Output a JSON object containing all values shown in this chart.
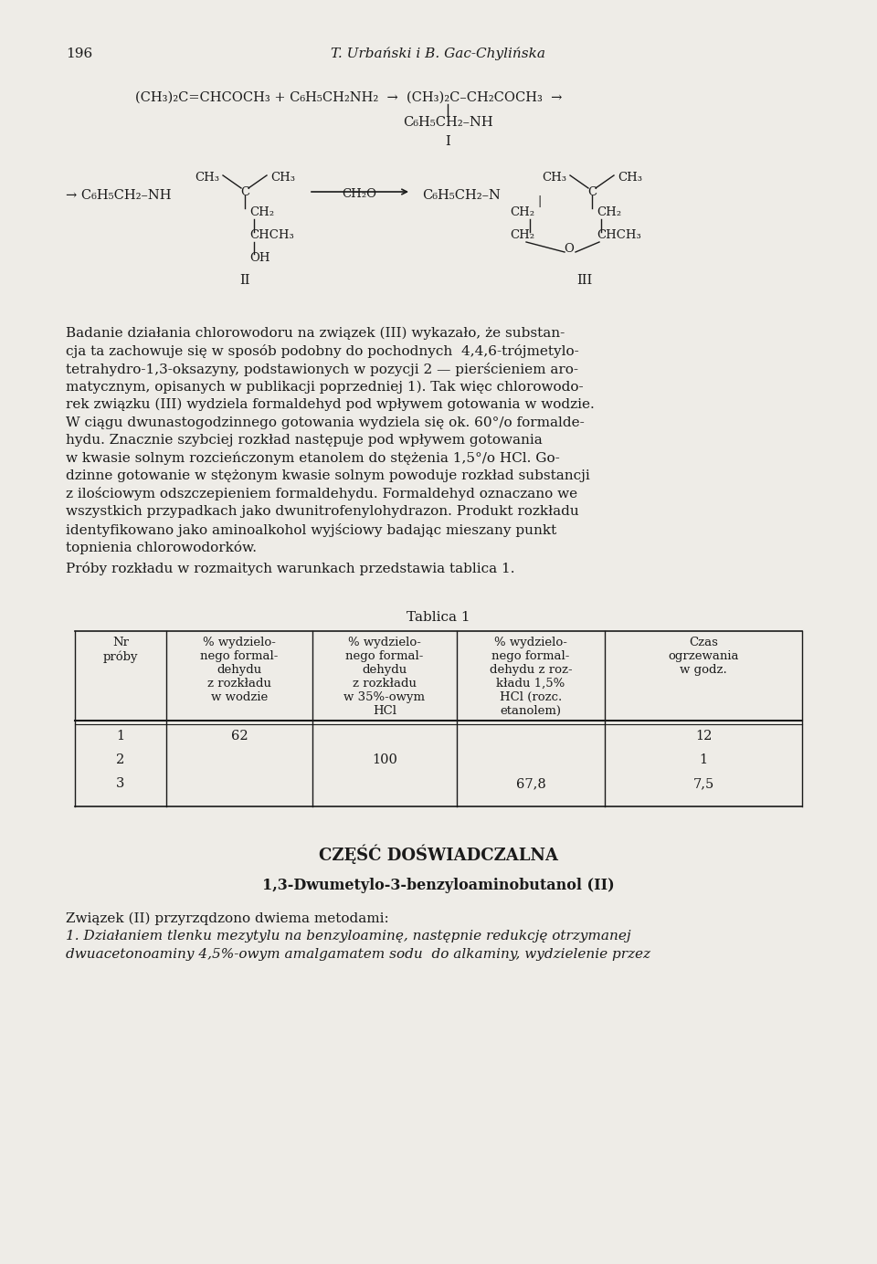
{
  "page_number": "196",
  "header": "T. Urbański i B. Gac-Chylińska",
  "bg_color": "#eeece7",
  "text_color": "#1a1a1a",
  "body_lines": [
    "Badanie działania chlorowodoru na związek (III) wykazało, że substan-",
    "cja ta zachowuje się w sposób podobny do pochodnych  4,4,6-trójmetylo-",
    "tetrahydro-1,3-oksazyny, podstawionych w pozycji 2 — pierścieniem aro-",
    "matycznym, opisanych w publikacji poprzedniej 1). Tak więc chlorowodo-",
    "rek związku (III) wydziela formaldehyd pod wpływem gotowania w wodzie.",
    "W ciągu dwunastogodzinnego gotowania wydziela się ok. 60°/o formalde-",
    "hydu. Znacznie szybciej rozkład następuje pod wpływem gotowania",
    "w kwasie solnym rozcieńczonym etanolem do stężenia 1,5°/o HCl. Go-",
    "dzinne gotowanie w stężonym kwasie solnym powoduje rozkład substancji",
    "z ilościowym odszczepieniem formaldehydu. Formaldehyd oznaczano we",
    "wszystkich przypadkach jako dwunitrofenylohydrazon. Produkt rozkładu",
    "identyfikowano jako aminoalkohol wyjściowy badając mieszany punkt",
    "topnienia chlorowodorków."
  ],
  "last_para": "Próby rozkładu w rozmaitych warunkach przedstawia tablica 1.",
  "table_title": "Tablica 1",
  "col_headers": [
    "Nr\npróby",
    "% wydzielo-\nnego formal-\ndehydu\nz rozkładu\nw wodzie",
    "% wydzielo-\nnego formal-\ndehydu\nz rozkładu\nw 35%-owym\nHCl",
    "% wydzielo-\nnego formal-\ndehydu z roz-\nkładu 1,5%\nHCl (rozc.\netanolem)",
    "Czas\nogrzewania\nw godz."
  ],
  "table_rows": [
    [
      "1",
      "62",
      "",
      "",
      "12"
    ],
    [
      "2",
      "",
      "100",
      "",
      "1"
    ],
    [
      "3",
      "",
      "",
      "67,8",
      "7,5"
    ]
  ],
  "section_title": "CZĘŚĆ DOŚWIADCZALNA",
  "subsection_title": "1,3-Dwumetylo-3-benzyloaminobutanol (II)",
  "final_lines": [
    "Związek (II) przyrzqdzono dwiema metodami:",
    "1. Działaniem tlenku mezytylu na benzyloaminę, następnie redukcję otrzymanej",
    "dwuacetonoaminy 4,5%-owym amalgamatem sodu  do alkaminy, wydzielenie przez"
  ]
}
